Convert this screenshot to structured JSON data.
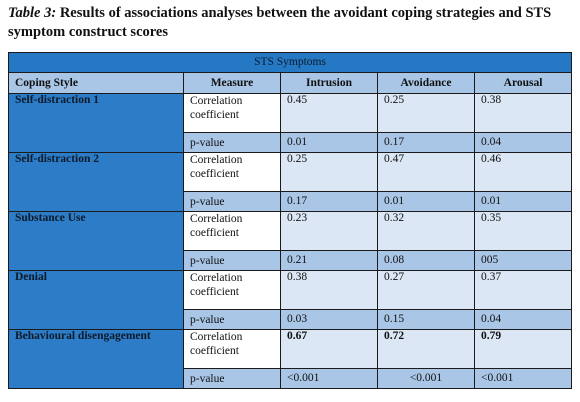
{
  "caption": {
    "lead": "Table 3:",
    "text": " Results of associations analyses between the avoidant coping strategies and STS symptom construct scores"
  },
  "table": {
    "span_header": "STS Symptoms",
    "columns": [
      "Coping Style",
      "Measure",
      "Intrusion",
      "Avoidance",
      "Arousal"
    ],
    "rows": [
      {
        "style": "Self-distraction 1",
        "corr_label": "Correlation coefficient",
        "corr": [
          "0.45",
          "0.25",
          "0.38"
        ],
        "p_label": "p-value",
        "p": [
          "0.01",
          "0.17",
          "0.04"
        ]
      },
      {
        "style": "Self-distraction 2",
        "corr_label": "Correlation coefficient",
        "corr": [
          "0.25",
          "0.47",
          "0.46"
        ],
        "p_label": "p-value",
        "p": [
          "0.17",
          "0.01",
          "0.01"
        ]
      },
      {
        "style": "Substance Use",
        "corr_label": "Correlation coefficient",
        "corr": [
          "0.23",
          "0.32",
          "0.35"
        ],
        "p_label": "p-value",
        "p": [
          "0.21",
          "0.08",
          "005"
        ]
      },
      {
        "style": "Denial",
        "corr_label": "Correlation coefficient",
        "corr": [
          "0.38",
          "0.27",
          "0.37"
        ],
        "p_label": "p-value",
        "p": [
          "0.03",
          "0.15",
          "0.04"
        ]
      },
      {
        "style": "Behavioural disengagement",
        "corr_label": "Correlation coefficient",
        "corr": [
          "0.67",
          "0.72",
          "0.79"
        ],
        "p_label": "p-value",
        "p": [
          "<0.001",
          "<0.001",
          "<0.001"
        ]
      }
    ]
  }
}
